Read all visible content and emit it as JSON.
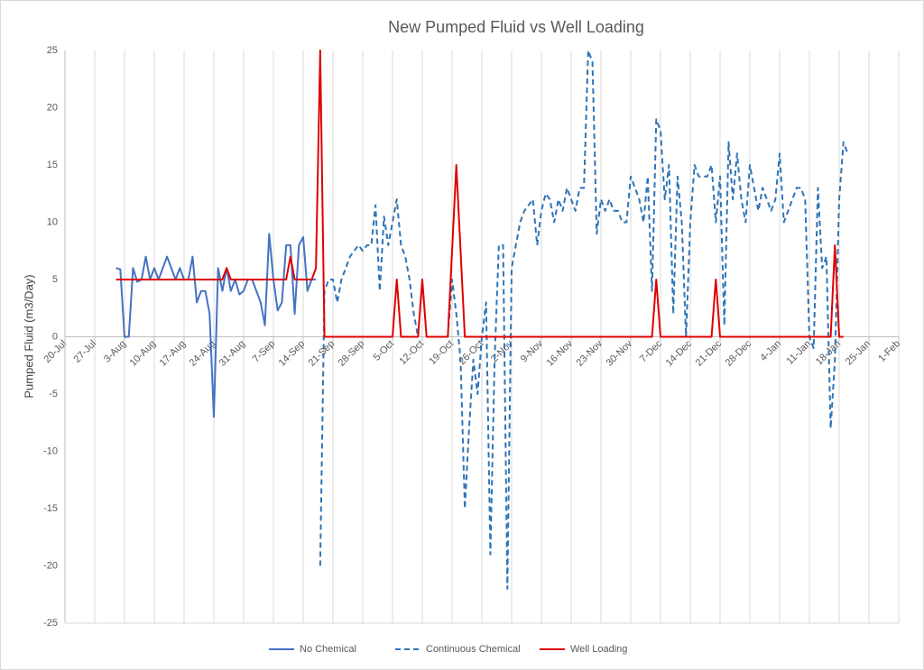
{
  "chart_data": {
    "type": "line",
    "title": "New Pumped Fluid vs Well Loading",
    "ylabel": "Pumped Fluid (m3/Day)",
    "xlim": [
      0,
      196
    ],
    "xticks": [
      {
        "value": 0,
        "label": "20-Jul"
      },
      {
        "value": 7,
        "label": "27-Jul"
      },
      {
        "value": 14,
        "label": "3-Aug"
      },
      {
        "value": 21,
        "label": "10-Aug"
      },
      {
        "value": 28,
        "label": "17-Aug"
      },
      {
        "value": 35,
        "label": "24-Aug"
      },
      {
        "value": 42,
        "label": "31-Aug"
      },
      {
        "value": 49,
        "label": "7-Sep"
      },
      {
        "value": 56,
        "label": "14-Sep"
      },
      {
        "value": 63,
        "label": "21-Sep"
      },
      {
        "value": 70,
        "label": "28-Sep"
      },
      {
        "value": 77,
        "label": "5-Oct"
      },
      {
        "value": 84,
        "label": "12-Oct"
      },
      {
        "value": 91,
        "label": "19-Oct"
      },
      {
        "value": 98,
        "label": "26-Oct"
      },
      {
        "value": 105,
        "label": "2-Nov"
      },
      {
        "value": 112,
        "label": "9-Nov"
      },
      {
        "value": 119,
        "label": "16-Nov"
      },
      {
        "value": 126,
        "label": "23-Nov"
      },
      {
        "value": 133,
        "label": "30-Nov"
      },
      {
        "value": 140,
        "label": "7-Dec"
      },
      {
        "value": 147,
        "label": "14-Dec"
      },
      {
        "value": 154,
        "label": "21-Dec"
      },
      {
        "value": 161,
        "label": "28-Dec"
      },
      {
        "value": 168,
        "label": "4-Jan"
      },
      {
        "value": 175,
        "label": "11-Jan"
      },
      {
        "value": 182,
        "label": "18-Jan"
      },
      {
        "value": 189,
        "label": "25-Jan"
      },
      {
        "value": 196,
        "label": "1-Feb"
      }
    ],
    "ylim": [
      -25,
      25
    ],
    "yticks": [
      -25,
      -20,
      -15,
      -10,
      -5,
      0,
      5,
      10,
      15,
      20,
      25
    ],
    "grid": "x",
    "legend": "bottom",
    "series": [
      {
        "name": "No Chemical",
        "color": "#4472c4",
        "line_style": "solid",
        "x": [
          12,
          13,
          14,
          15,
          16,
          17,
          18,
          19,
          20,
          21,
          22,
          23,
          24,
          25,
          26,
          27,
          28,
          29,
          30,
          31,
          32,
          33,
          34,
          35,
          36,
          37,
          38,
          39,
          40,
          41,
          42,
          43,
          44,
          45,
          46,
          47,
          48,
          49,
          50,
          51,
          52,
          53,
          54,
          55,
          56,
          57,
          58,
          59
        ],
        "values": [
          6,
          5.9,
          0,
          0,
          6,
          4.8,
          5,
          7,
          5,
          6,
          5,
          6,
          7,
          6,
          5,
          6,
          5,
          5,
          7,
          3,
          4,
          4,
          2,
          -7,
          6,
          4,
          6,
          4,
          5,
          3.7,
          4,
          5,
          5,
          4,
          3,
          1,
          9,
          5,
          2.3,
          3,
          8,
          8,
          2,
          8,
          8.7,
          4,
          5,
          5
        ]
      },
      {
        "name": "Continuous Chemical",
        "color": "#2e75b6",
        "line_style": "dashed",
        "x": [
          60,
          61,
          62,
          63,
          64,
          65,
          66,
          67,
          68,
          69,
          70,
          71,
          72,
          73,
          74,
          75,
          76,
          77,
          78,
          79,
          80,
          81,
          82,
          83,
          84,
          85,
          86,
          87,
          88,
          89,
          90,
          91,
          92,
          93,
          94,
          95,
          96,
          97,
          98,
          99,
          100,
          101,
          102,
          103,
          104,
          105,
          106,
          107,
          108,
          109,
          110,
          111,
          112,
          113,
          114,
          115,
          116,
          117,
          118,
          119,
          120,
          121,
          122,
          123,
          124,
          125,
          126,
          127,
          128,
          129,
          130,
          131,
          132,
          133,
          134,
          135,
          136,
          137,
          138,
          139,
          140,
          141,
          142,
          143,
          144,
          145,
          146,
          147,
          148,
          149,
          150,
          151,
          152,
          153,
          154,
          155,
          156,
          157,
          158,
          159,
          160,
          161,
          162,
          163,
          164,
          165,
          166,
          167,
          168,
          169,
          170,
          171,
          172,
          173,
          174,
          175,
          176,
          177,
          178,
          179,
          180,
          181,
          182,
          183,
          184
        ],
        "values": [
          -20,
          4,
          5,
          5,
          3,
          5,
          6,
          7,
          7.5,
          8,
          7.5,
          8,
          8,
          11.5,
          4,
          10.5,
          8,
          10,
          12,
          8,
          7,
          5,
          2,
          0,
          null,
          null,
          null,
          null,
          null,
          null,
          0,
          5,
          2,
          -2,
          -15,
          -8,
          -2,
          -5,
          0,
          3,
          -19,
          -2,
          8,
          8,
          -22,
          6,
          8,
          10,
          11,
          11.5,
          12,
          8,
          11,
          12.5,
          12,
          10,
          12,
          11,
          13,
          12,
          11,
          13,
          13,
          25,
          24,
          9,
          12,
          11,
          12,
          11,
          11,
          10,
          10,
          14,
          13,
          12,
          10,
          14,
          4,
          19,
          18,
          12,
          15,
          2,
          14,
          10,
          0,
          10,
          15,
          14,
          14,
          14,
          15,
          10,
          14,
          1,
          17,
          12,
          16,
          12,
          10,
          15,
          13,
          11,
          13,
          12,
          11,
          12,
          16,
          10,
          11,
          12,
          13,
          13,
          12,
          0,
          -1,
          13,
          6,
          7,
          -8,
          -2,
          12,
          17,
          16
        ]
      },
      {
        "name": "Well Loading",
        "color": "#e00000",
        "line_style": "solid",
        "x": [
          12,
          37,
          38,
          39,
          52,
          53,
          54,
          58,
          59,
          60,
          61,
          77,
          78,
          79,
          83,
          84,
          85,
          90,
          92,
          94,
          138,
          139,
          140,
          152,
          153,
          154,
          180,
          181,
          182,
          183
        ],
        "values": [
          5,
          5,
          6,
          5,
          5,
          7,
          5,
          5,
          6,
          25,
          0,
          0,
          5,
          0,
          0,
          5,
          0,
          0,
          15,
          0,
          0,
          5,
          0,
          0,
          5,
          0,
          0,
          8,
          0,
          0
        ]
      }
    ]
  }
}
